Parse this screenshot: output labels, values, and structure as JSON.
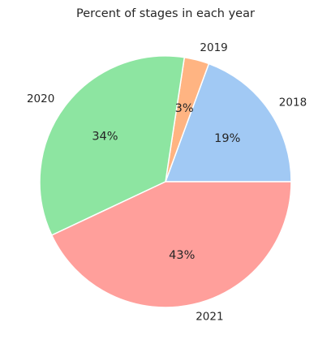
{
  "chart_data": {
    "type": "pie",
    "title": "Percent of stages in each year",
    "categories": [
      "2018",
      "2019",
      "2020",
      "2021"
    ],
    "values": [
      19.4,
      3.2,
      34.4,
      43.0
    ],
    "value_labels": [
      "19%",
      "3%",
      "34%",
      "43%"
    ],
    "colors": [
      "#a1c9f4",
      "#ffb482",
      "#8de5a1",
      "#ff9f9b"
    ],
    "start_angle_deg": 0,
    "direction": "counterclockwise",
    "legend": "none",
    "wedge_edge_color": "#ffffff"
  }
}
